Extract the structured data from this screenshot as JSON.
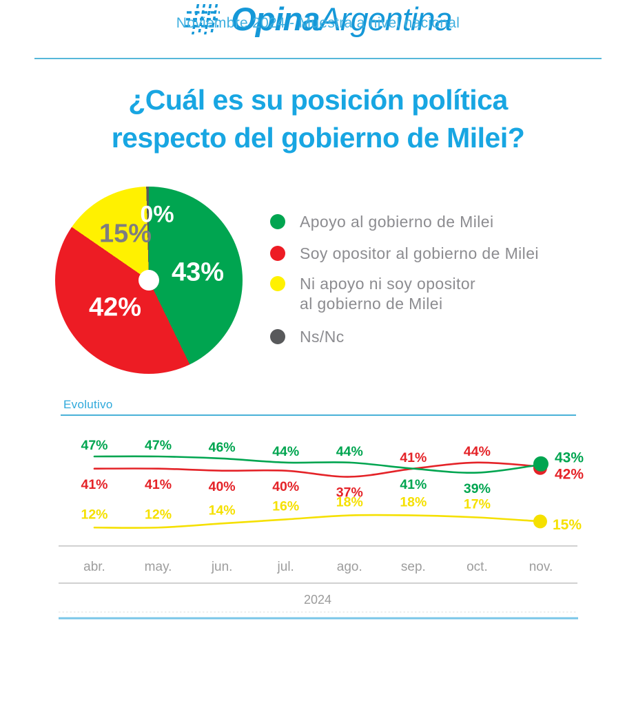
{
  "header": {
    "subtitle": "Noviembre 2024 - Muestra a nivel nacional"
  },
  "title": {
    "line1": "¿Cuál es su posición política",
    "line2": "respecto del gobierno de Milei?"
  },
  "legend": {
    "items": [
      {
        "label": "Apoyo al gobierno de Milei",
        "color": "#00a550"
      },
      {
        "label": "Soy opositor al gobierno de Milei",
        "color": "#ed1c24"
      },
      {
        "label": "Ni apoyo ni soy opositor",
        "label2": "al gobierno de Milei",
        "color": "#fff100"
      },
      {
        "label": "Ns/Nc",
        "color": "#58595b"
      }
    ]
  },
  "chart_data": [
    {
      "type": "pie",
      "slices": [
        {
          "label": "Apoyo al gobierno de Milei",
          "value": 43,
          "color": "#00a550"
        },
        {
          "label": "Soy opositor al gobierno de Milei",
          "value": 42,
          "color": "#ed1c24"
        },
        {
          "label": "Ni apoyo ni soy opositor al gobierno de Milei",
          "value": 15,
          "color": "#fff100"
        },
        {
          "label": "Ns/Nc",
          "value": 0,
          "color": "#58595b"
        }
      ],
      "labels_format": "percent",
      "start_angle": "top",
      "direction": "clockwise"
    },
    {
      "type": "line",
      "title": "Evolutivo",
      "x": [
        "abr.",
        "may.",
        "jun.",
        "jul.",
        "ago.",
        "sep.",
        "oct.",
        "nov."
      ],
      "x_year": "2024",
      "series": [
        {
          "name": "Apoyo al gobierno de Milei",
          "color": "#00a550",
          "values": [
            47,
            47,
            46,
            44,
            44,
            41,
            39,
            43
          ]
        },
        {
          "name": "Soy opositor al gobierno de Milei",
          "color": "#e42328",
          "values": [
            41,
            41,
            40,
            40,
            37,
            41,
            44,
            42
          ]
        },
        {
          "name": "Ni apoyo ni soy opositor al gobierno de Milei",
          "color": "#f5e000",
          "values": [
            12,
            12,
            14,
            16,
            18,
            18,
            17,
            15
          ]
        }
      ],
      "labels_format": "percent",
      "legend_position": "none",
      "grid": "horizontal-rules",
      "markers": "last-point-only"
    }
  ],
  "footer": {
    "brand_bold": "Opina",
    "brand_regular": "Argentina"
  },
  "colors": {
    "accent_cyan": "#18a6e2",
    "subtitle_cyan": "#3fafdf",
    "rule_cyan": "#56b7d9",
    "bottom_rule_cyan": "#7ac6e8",
    "legend_text_gray": "#8c8c90",
    "axis_text_gray": "#9d9d9d",
    "pie_label_gray": "#7d7d80",
    "brand_cyan": "#1598d8"
  }
}
